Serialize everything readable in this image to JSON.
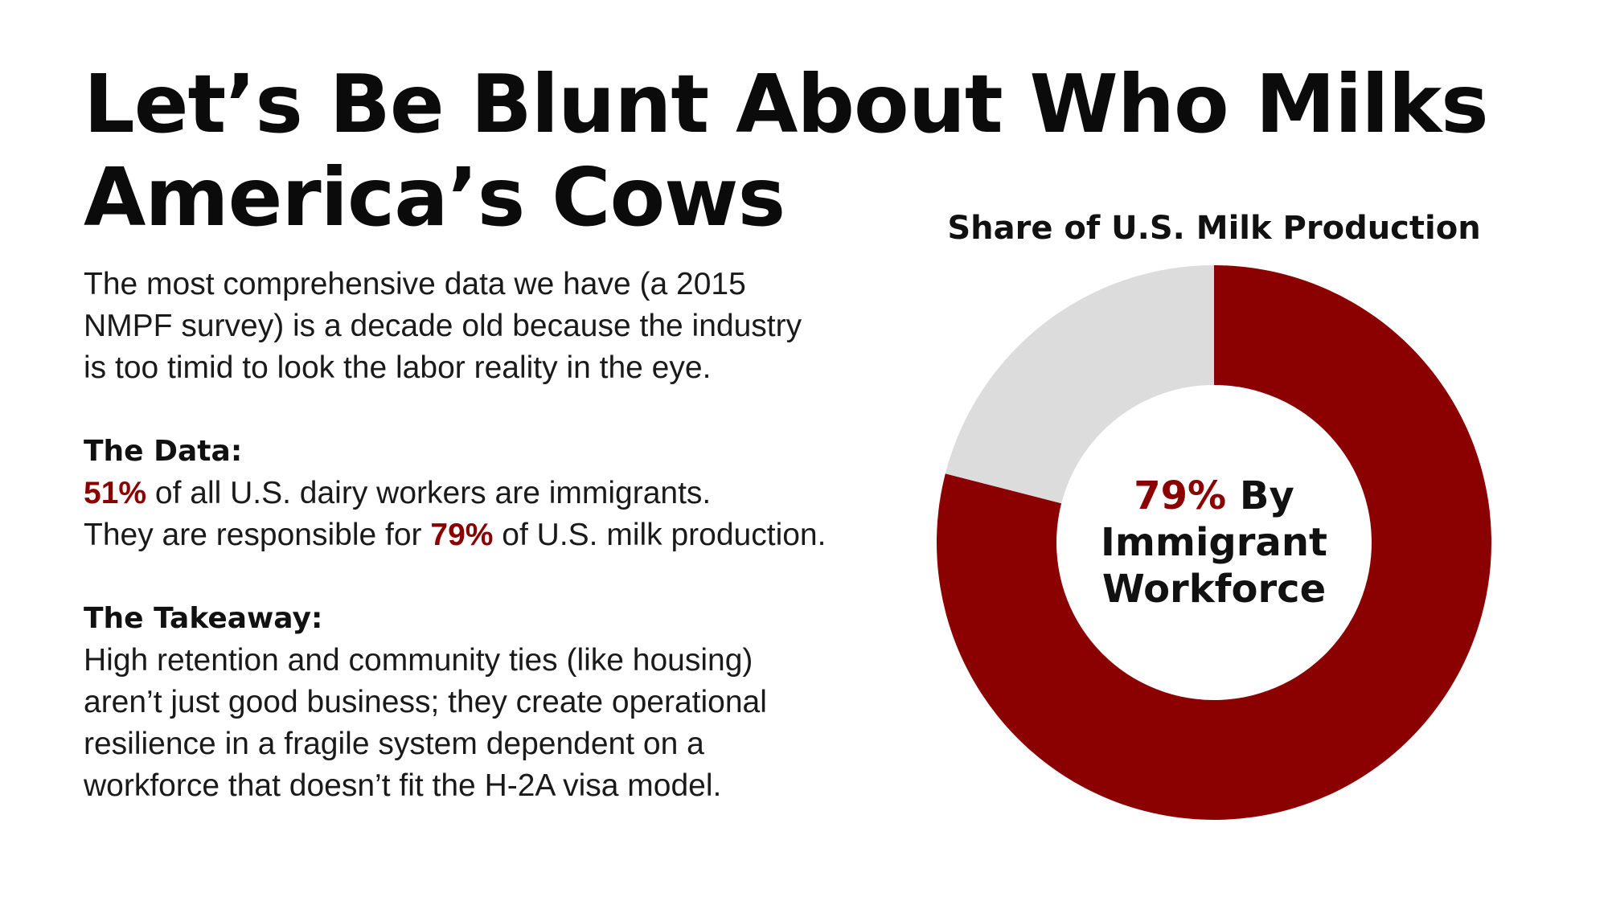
{
  "title": {
    "line1": "Let’s Be Blunt About Who Milks",
    "line2": "America’s Cows"
  },
  "intro": {
    "line1": "The most comprehensive data we have (a 2015",
    "line2": "NMPF survey) is a decade old because the industry",
    "line3": "is too timid to look the labor reality in the eye."
  },
  "data_section": {
    "heading": "The Data:",
    "line1_highlight": "51%",
    "line1_rest": " of all U.S. dairy workers are immigrants.",
    "line2_pre": "They are responsible for ",
    "line2_highlight": "79%",
    "line2_post": " of U.S. milk production."
  },
  "takeaway": {
    "heading": "The Takeaway:",
    "line1": "High retention and community ties (like housing)",
    "line2": "aren’t just good business; they create operational",
    "line3": "resilience in a fragile system dependent on a",
    "line4": "workforce that doesn’t fit the H-2A visa model."
  },
  "colors": {
    "accent": "#8b0000",
    "donut_primary": "#8b0000",
    "donut_secondary": "#dcdcdc",
    "text": "#111111"
  },
  "chart_data": {
    "type": "pie",
    "title": "Share of U.S. Milk Production",
    "slices": [
      {
        "value": 79,
        "color": "#8b0000"
      },
      {
        "value": 21,
        "color": "#dcdcdc"
      }
    ],
    "center_label": {
      "pct": "79%",
      "word1": " By",
      "line2": "Immigrant",
      "line3": "Workforce"
    }
  }
}
